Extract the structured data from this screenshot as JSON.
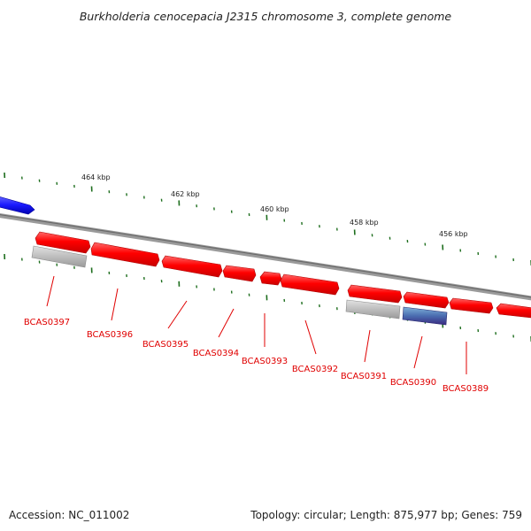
{
  "title": "Burkholderia cenocepacia J2315 chromosome 3, complete genome",
  "footer": {
    "accession": "Accession: NC_011002",
    "summary": "Topology: circular; Length: 875,977 bp; Genes: 759"
  },
  "scale_labels": [
    "464 kbp",
    "462 kbp",
    "460 kbp",
    "458 kbp",
    "456 kbp"
  ],
  "genes": [
    {
      "label": "BCAS0397",
      "strand": "forward"
    },
    {
      "label": "BCAS0396",
      "strand": "forward"
    },
    {
      "label": "BCAS0395",
      "strand": "forward"
    },
    {
      "label": "BCAS0394",
      "strand": "forward"
    },
    {
      "label": "BCAS0393",
      "strand": "forward"
    },
    {
      "label": "BCAS0392",
      "strand": "forward"
    },
    {
      "label": "BCAS0391",
      "strand": "forward"
    },
    {
      "label": "BCAS0390",
      "strand": "forward"
    },
    {
      "label": "BCAS0389",
      "strand": "forward"
    }
  ],
  "colors": {
    "gene_forward": "#ff0000",
    "gene_reverse": "#1a1aff",
    "pseudo_feature": "#bdbdbd",
    "misc_feature": "#5a6fb0",
    "backbone": "#808080",
    "ticks": "#1e6e1e",
    "label": "#e00000"
  }
}
